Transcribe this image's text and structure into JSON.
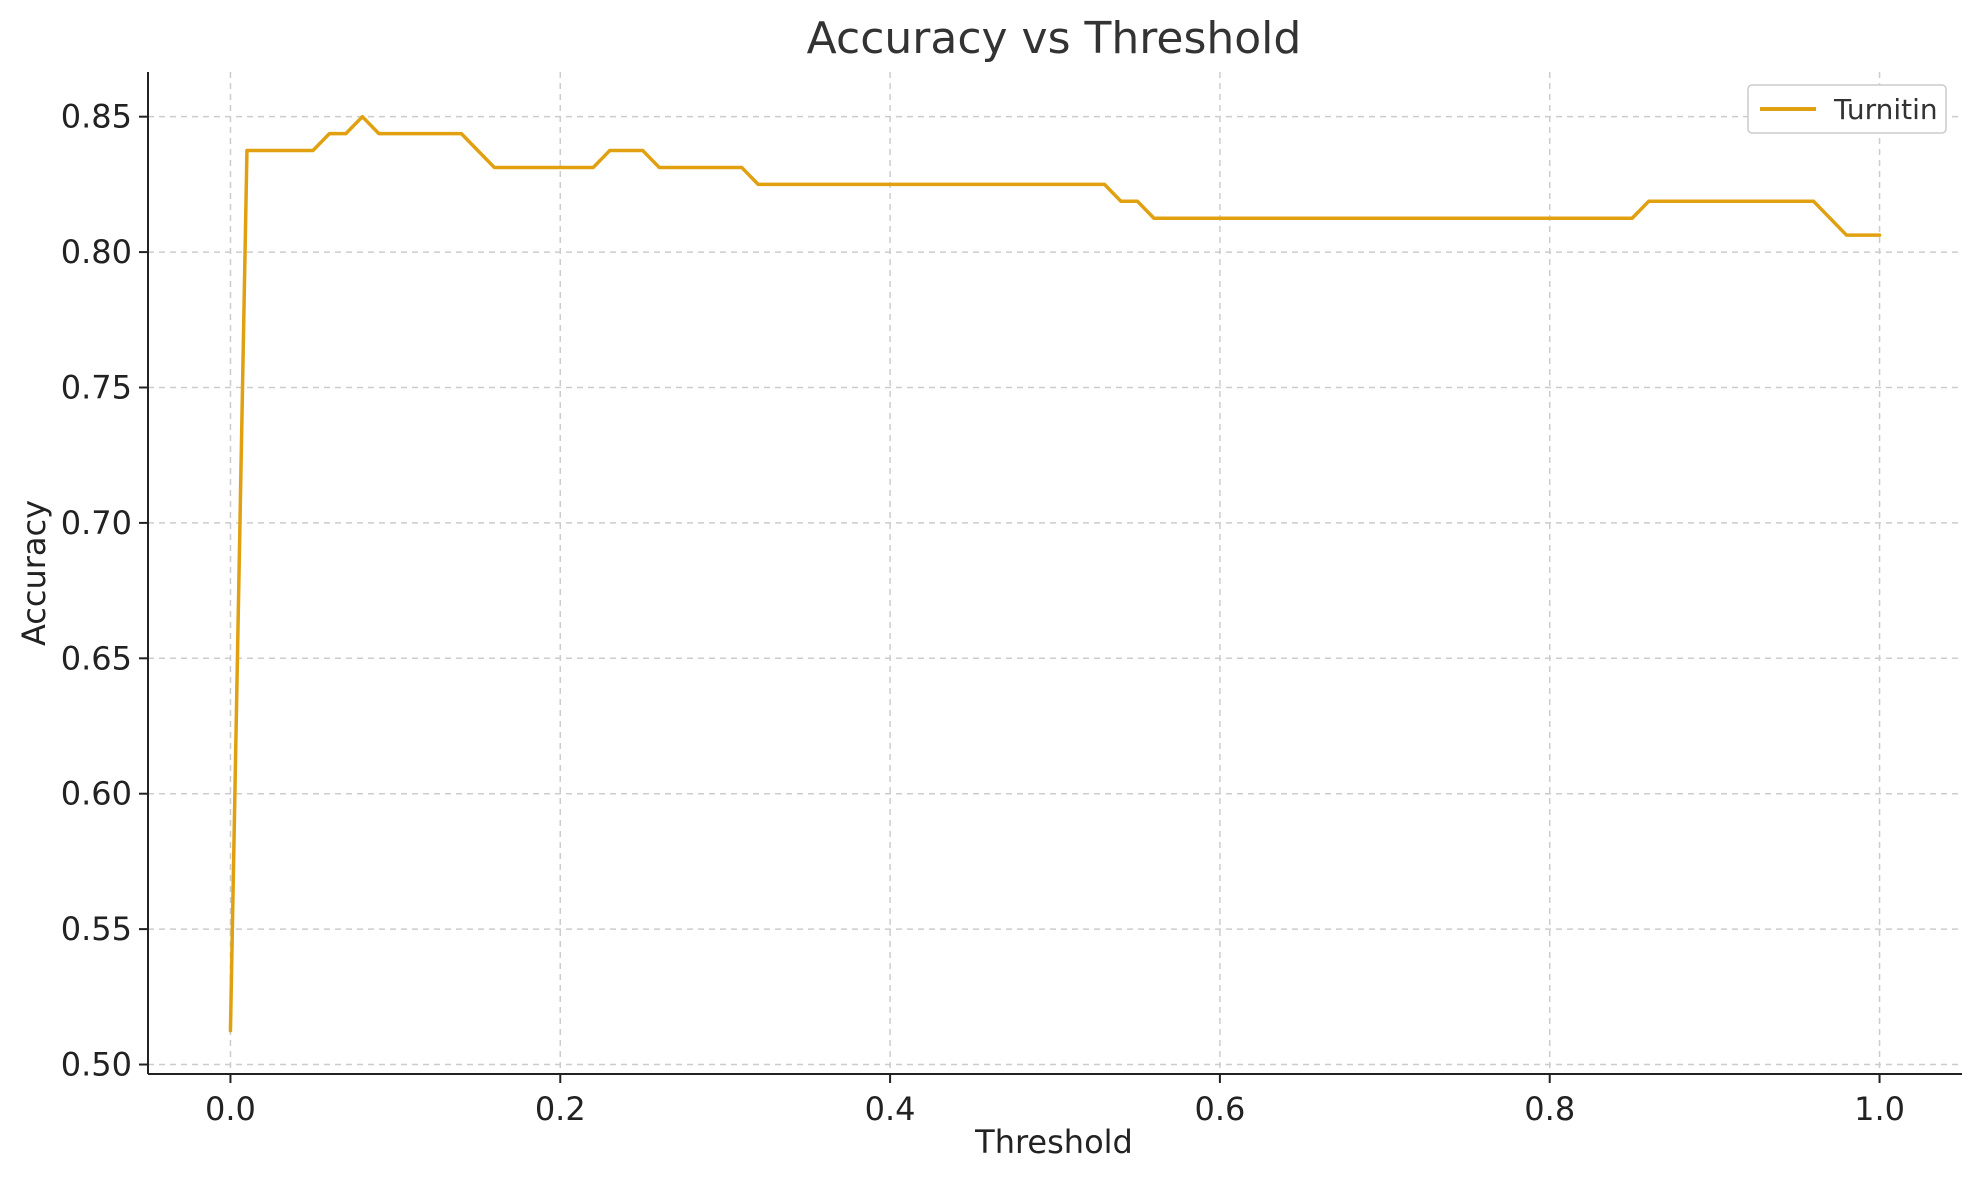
{
  "chart_data": {
    "type": "line",
    "title": "Accuracy vs Threshold",
    "xlabel": "Threshold",
    "ylabel": "Accuracy",
    "xlim": [
      -0.05,
      1.05
    ],
    "ylim": [
      0.4965,
      0.8665
    ],
    "xticks": [
      0.0,
      0.2,
      0.4,
      0.6,
      0.8,
      1.0
    ],
    "xtick_labels": [
      "0.0",
      "0.2",
      "0.4",
      "0.6",
      "0.8",
      "1.0"
    ],
    "yticks": [
      0.5,
      0.55,
      0.6,
      0.65,
      0.7,
      0.75,
      0.8,
      0.85
    ],
    "ytick_labels": [
      "0.50",
      "0.55",
      "0.60",
      "0.65",
      "0.70",
      "0.75",
      "0.80",
      "0.85"
    ],
    "grid": true,
    "legend_position": "top-right",
    "series": [
      {
        "name": "Turnitin",
        "color": "#E0A010",
        "x": [
          0.0,
          0.01,
          0.05,
          0.06,
          0.07,
          0.08,
          0.09,
          0.14,
          0.16,
          0.22,
          0.23,
          0.25,
          0.26,
          0.31,
          0.32,
          0.53,
          0.54,
          0.55,
          0.56,
          0.85,
          0.86,
          0.96,
          0.98,
          1.0
        ],
        "values": [
          0.5125,
          0.8375,
          0.8375,
          0.84375,
          0.84375,
          0.85,
          0.84375,
          0.84375,
          0.83125,
          0.83125,
          0.8375,
          0.8375,
          0.83125,
          0.83125,
          0.825,
          0.825,
          0.81875,
          0.81875,
          0.8125,
          0.8125,
          0.81875,
          0.81875,
          0.80625,
          0.80625
        ]
      }
    ]
  }
}
